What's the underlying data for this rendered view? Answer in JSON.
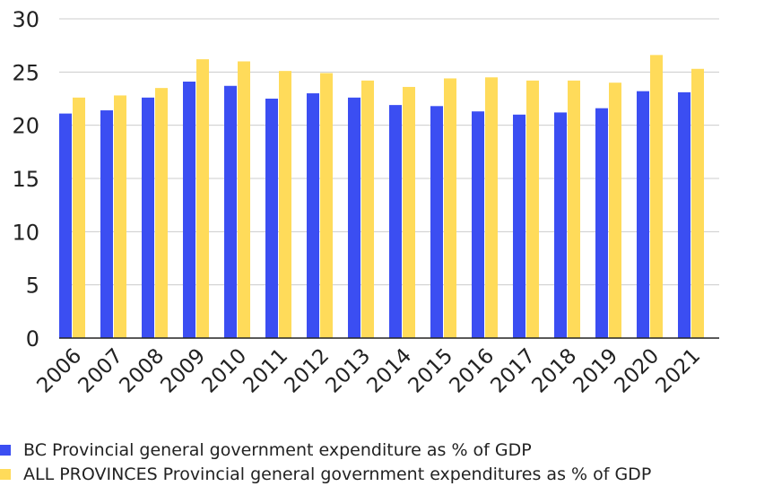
{
  "colors": {
    "bc": "#3b4ef2",
    "all": "#ffdb5a",
    "grid": "#cccccc",
    "axis": "#222222"
  },
  "chart_data": {
    "type": "bar",
    "title": "",
    "xlabel": "",
    "ylabel": "",
    "ylim": [
      0,
      30
    ],
    "yticks": [
      0,
      5,
      10,
      15,
      20,
      25,
      30
    ],
    "grid": true,
    "legend_position": "bottom",
    "categories": [
      "2006",
      "2007",
      "2008",
      "2009",
      "2010",
      "2011",
      "2012",
      "2013",
      "2014",
      "2015",
      "2016",
      "2017",
      "2018",
      "2019",
      "2020",
      "2021"
    ],
    "series": [
      {
        "name": "BC Provincial general government expenditure as % of GDP",
        "values": [
          21.1,
          21.4,
          22.6,
          24.1,
          23.7,
          22.5,
          23.0,
          22.6,
          21.9,
          21.8,
          21.3,
          21.0,
          21.2,
          21.6,
          23.2,
          23.1
        ]
      },
      {
        "name": "ALL PROVINCES Provincial general government expenditures as % of GDP",
        "values": [
          22.6,
          22.8,
          23.5,
          26.2,
          26.0,
          25.1,
          24.9,
          24.2,
          23.6,
          24.4,
          24.5,
          24.2,
          24.2,
          24.0,
          26.6,
          25.3
        ]
      }
    ]
  }
}
